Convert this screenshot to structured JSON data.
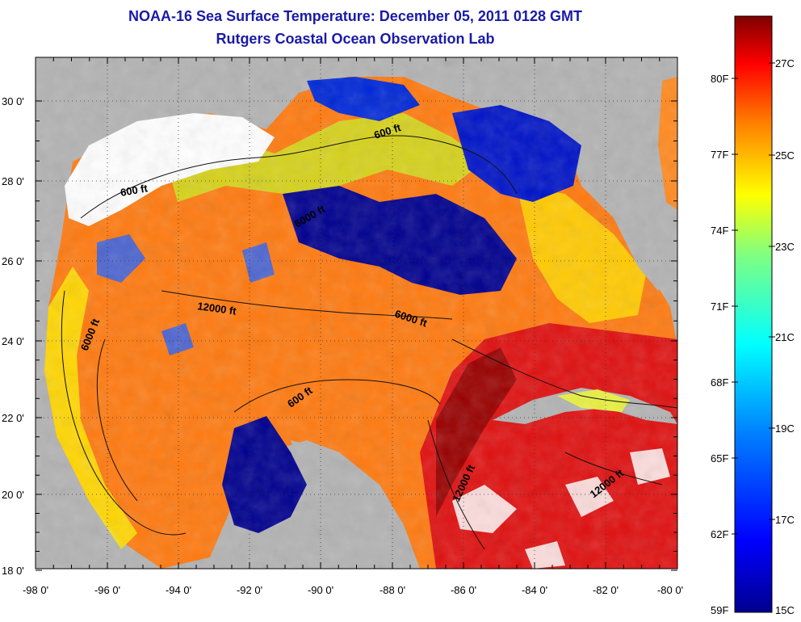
{
  "title": "NOAA-16 Sea Surface Temperature:  December 05, 2011 0128 GMT",
  "subtitle": "Rutgers Coastal Ocean Observation Lab",
  "lat_labels": [
    "30 0'",
    "28 0'",
    "26 0'",
    "24 0'",
    "22 0'",
    "20 0'",
    "18 0'"
  ],
  "lon_labels": [
    "-98 0'",
    "-96 0'",
    "-94 0'",
    "-92 0'",
    "-90 0'",
    "-88 0'",
    "-86 0'",
    "-84 0'",
    "-82 0'",
    "-80 0'"
  ],
  "contours": [
    "600 ft",
    "600 ft",
    "600 ft",
    "6000 ft",
    "12000 ft",
    "6000 ft",
    "6000 ft",
    "12000 ft",
    "12000 ft"
  ],
  "colorbar": {
    "f_labels": [
      "80F",
      "77F",
      "74F",
      "71F",
      "68F",
      "65F",
      "62F",
      "59F"
    ],
    "c_labels": [
      "27C",
      "25C",
      "23C",
      "21C",
      "19C",
      "17C",
      "15C"
    ]
  },
  "colors": {
    "title": "#1a1aa8",
    "land": "#b3b3b3",
    "cloud": "#ffffff",
    "cold": "#00008f",
    "warm": "#ff6a00",
    "hot": "#c00000"
  }
}
